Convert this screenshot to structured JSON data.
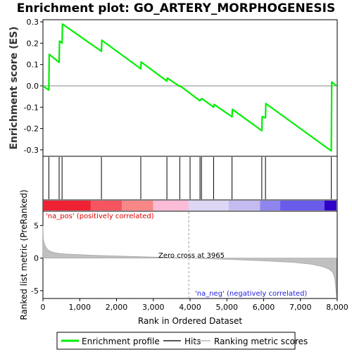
{
  "title": "Enrichment plot: GO_ARTERY_MORPHOGENESIS",
  "chart_data": [
    {
      "type": "line",
      "panel": "enrichment-profile",
      "ylabel": "Enrichment score (ES)",
      "xlim": [
        0,
        8000
      ],
      "ylim": [
        -0.33,
        0.31
      ],
      "yticks": [
        -0.3,
        -0.2,
        -0.1,
        0.0,
        0.1,
        0.2,
        0.3
      ],
      "ytick_labels": [
        "-0.3",
        "-0.2",
        "-0.1",
        "0.0",
        "0.1",
        "0.2",
        "0.3"
      ],
      "series": [
        {
          "name": "Enrichment profile",
          "color": "#00ee00",
          "x": [
            0,
            160,
            170,
            440,
            450,
            520,
            530,
            1590,
            1600,
            2660,
            2670,
            3370,
            3380,
            3720,
            3730,
            4270,
            4280,
            4310,
            4320,
            4640,
            4650,
            5140,
            5150,
            5950,
            5960,
            6050,
            6060,
            7840,
            7850,
            7980
          ],
          "y": [
            0.0,
            -0.02,
            0.148,
            0.11,
            0.21,
            0.2,
            0.29,
            0.162,
            0.214,
            0.08,
            0.112,
            0.022,
            0.037,
            -0.003,
            0.0,
            -0.07,
            -0.064,
            -0.063,
            -0.059,
            -0.1,
            -0.087,
            -0.145,
            -0.11,
            -0.21,
            -0.144,
            -0.15,
            -0.083,
            -0.305,
            0.018,
            0.0
          ]
        }
      ],
      "zero_line_color": "#888888"
    },
    {
      "type": "scatter",
      "panel": "hits",
      "name": "Hits",
      "hit_ranks": [
        160,
        440,
        520,
        1590,
        2660,
        3370,
        3720,
        4000,
        4270,
        4310,
        4640,
        5140,
        5950,
        6050,
        7840
      ]
    },
    {
      "type": "heatmap",
      "panel": "rank-color-bar",
      "xlim": [
        0,
        8000
      ],
      "segments": [
        {
          "from": 0,
          "to": 1300,
          "color": "#ee2233"
        },
        {
          "from": 1300,
          "to": 2150,
          "color": "#f55560"
        },
        {
          "from": 2150,
          "to": 3000,
          "color": "#f88888"
        },
        {
          "from": 3000,
          "to": 3965,
          "color": "#fbbcd8"
        },
        {
          "from": 3965,
          "to": 5050,
          "color": "#ddd6f4"
        },
        {
          "from": 5050,
          "to": 5900,
          "color": "#c4bcf0"
        },
        {
          "from": 5900,
          "to": 6450,
          "color": "#8e86ee"
        },
        {
          "from": 6450,
          "to": 7650,
          "color": "#6a5cea"
        },
        {
          "from": 7650,
          "to": 7980,
          "color": "#3000c8"
        }
      ]
    },
    {
      "type": "area",
      "panel": "ranked-metric",
      "ylabel": "Ranked list metric (PreRanked)",
      "xlabel": "Rank in Ordered Dataset",
      "xlim": [
        0,
        8000
      ],
      "ylim": [
        -6.2,
        7.2
      ],
      "xticks": [
        0,
        1000,
        2000,
        3000,
        4000,
        5000,
        6000,
        7000,
        8000
      ],
      "xtick_labels": [
        "0",
        "1,000",
        "2,000",
        "3,000",
        "4,000",
        "5,000",
        "6,000",
        "7,000",
        "8,000"
      ],
      "yticks": [
        -5,
        0,
        5
      ],
      "ytick_labels": [
        "-5",
        "0",
        "5"
      ],
      "color": "#c0c0c0",
      "x": [
        0,
        10,
        40,
        80,
        130,
        200,
        300,
        450,
        650,
        900,
        1300,
        2000,
        3000,
        3965,
        5000,
        6000,
        6800,
        7300,
        7600,
        7780,
        7880,
        7930,
        7960,
        7980
      ],
      "y": [
        5.0,
        3.0,
        2.2,
        1.7,
        1.3,
        1.05,
        0.85,
        0.72,
        0.62,
        0.55,
        0.45,
        0.32,
        0.15,
        0.0,
        -0.18,
        -0.42,
        -0.65,
        -0.95,
        -1.3,
        -1.7,
        -2.2,
        -3.0,
        -4.5,
        -6.0
      ],
      "annotations": {
        "pos": "'na_pos' (positively correlated)",
        "neg": "'na_neg' (negatively correlated)",
        "zero": "Zero cross at 3965",
        "zero_cross": 3965
      }
    }
  ],
  "legend": {
    "items": [
      {
        "label": "Enrichment profile",
        "color": "#00ee00"
      },
      {
        "label": "Hits",
        "color": "#555555"
      },
      {
        "label": "Ranking metric scores",
        "color": "#cccccc"
      }
    ]
  }
}
